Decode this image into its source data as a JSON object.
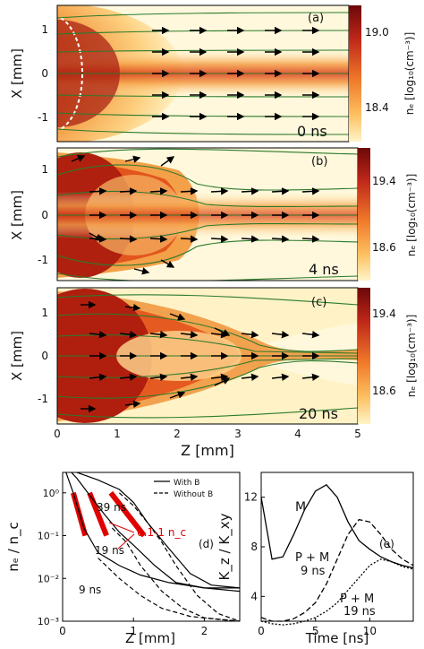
{
  "colors": {
    "plasma_dark": "#7a0a0a",
    "plasma_mid": "#e8561a",
    "plasma_light": "#ffe8a0",
    "field_line": "#2c7a2c",
    "arrow": "#000000",
    "bar_red": "#e00000"
  },
  "panels": [
    {
      "id": "a",
      "label": "(a)",
      "time": "0 ns",
      "ylabel": "X  [mm]",
      "yticks": [
        "1",
        "0",
        "-1"
      ],
      "colorbar_ticks": [
        "19.0",
        "18.4"
      ],
      "colorbar_label": "nₑ [log₁₀(cm⁻³)]"
    },
    {
      "id": "b",
      "label": "(b)",
      "time": "4 ns",
      "ylabel": "X  [mm]",
      "yticks": [
        "1",
        "0",
        "-1"
      ],
      "colorbar_ticks": [
        "19.4",
        "18.6"
      ],
      "colorbar_label": "nₑ [log₁₀(cm⁻³)]"
    },
    {
      "id": "c",
      "label": "(c)",
      "time": "20 ns",
      "ylabel": "X  [mm]",
      "yticks": [
        "1",
        "0",
        "-1"
      ],
      "colorbar_ticks": [
        "19.4",
        "18.6"
      ],
      "colorbar_label": "nₑ [log₁₀(cm⁻³)]"
    }
  ],
  "map_xaxis": {
    "label": "Z [mm]",
    "ticks": [
      "0",
      "1",
      "2",
      "3",
      "4",
      "5"
    ]
  },
  "chart_data": [
    {
      "type": "line",
      "panel": "(d)",
      "xlabel": "Z [mm]",
      "ylabel": "nₑ / n_c",
      "xlim": [
        0,
        2.5
      ],
      "ylim": [
        0.001,
        3
      ],
      "log_y": true,
      "xticks": [
        "0",
        "1",
        "2"
      ],
      "yticks": [
        "10⁰",
        "10⁻¹",
        "10⁻²",
        "10⁻³"
      ],
      "legend": [
        "With B",
        "Without B"
      ],
      "annotations": [
        "39 ns",
        "19 ns",
        "9 ns",
        "0.1-1 n_c"
      ],
      "series": [
        {
          "name": "With B",
          "label": "39 ns",
          "x": [
            0,
            0.2,
            0.5,
            0.8,
            1.0,
            1.2,
            1.5,
            1.8,
            2.1,
            2.5
          ],
          "y": [
            6,
            3,
            2.0,
            1.2,
            0.6,
            0.2,
            0.05,
            0.013,
            0.007,
            0.006
          ]
        },
        {
          "name": "With B",
          "label": "19 ns",
          "x": [
            0,
            0.2,
            0.4,
            0.6,
            0.8,
            1.0,
            1.3,
            1.6,
            2.0,
            2.5
          ],
          "y": [
            5,
            2.2,
            0.8,
            0.3,
            0.12,
            0.06,
            0.02,
            0.008,
            0.006,
            0.006
          ]
        },
        {
          "name": "With B",
          "label": "9 ns",
          "x": [
            0,
            0.15,
            0.3,
            0.5,
            0.8,
            1.1,
            1.5,
            2.0,
            2.5
          ],
          "y": [
            5,
            1.0,
            0.15,
            0.04,
            0.02,
            0.012,
            0.008,
            0.006,
            0.005
          ]
        },
        {
          "name": "Without B",
          "label": "39 ns",
          "x": [
            0.8,
            1.0,
            1.2,
            1.4,
            1.6,
            1.9,
            2.2,
            2.5
          ],
          "y": [
            1.0,
            0.5,
            0.2,
            0.07,
            0.02,
            0.004,
            0.0015,
            0.001
          ]
        },
        {
          "name": "Without B",
          "label": "19 ns",
          "x": [
            0.7,
            0.9,
            1.1,
            1.4,
            1.7,
            2.0,
            2.5
          ],
          "y": [
            0.15,
            0.07,
            0.02,
            0.005,
            0.002,
            0.0012,
            0.001
          ]
        },
        {
          "name": "Without B",
          "label": "9 ns",
          "x": [
            0.5,
            0.8,
            1.1,
            1.4,
            1.8,
            2.2,
            2.5
          ],
          "y": [
            0.03,
            0.01,
            0.004,
            0.002,
            0.0013,
            0.0011,
            0.001
          ]
        }
      ],
      "highlight_bars": [
        {
          "x": [
            0.15,
            0.32
          ],
          "y": [
            1.0,
            0.1
          ]
        },
        {
          "x": [
            0.38,
            0.62
          ],
          "y": [
            1.0,
            0.1
          ]
        },
        {
          "x": [
            0.68,
            1.15
          ],
          "y": [
            1.0,
            0.1
          ]
        }
      ]
    },
    {
      "type": "line",
      "panel": "(e)",
      "xlabel": "Time [ns]",
      "ylabel": "K_z / K_xy",
      "xlim": [
        0,
        14
      ],
      "ylim": [
        2,
        14
      ],
      "xticks": [
        "0",
        "5",
        "10"
      ],
      "yticks": [
        "12",
        "8",
        "4"
      ],
      "annotations": [
        "M",
        "P + M\n9 ns",
        "P + M\n19 ns"
      ],
      "series": [
        {
          "name": "M",
          "x": [
            0,
            1,
            2,
            3,
            4,
            5,
            6,
            7,
            8,
            9,
            10,
            11,
            12,
            13,
            14
          ],
          "y": [
            12,
            7,
            7.2,
            9,
            11,
            12.5,
            13,
            12,
            10,
            8.5,
            7.8,
            7.2,
            6.8,
            6.5,
            6.3
          ]
        },
        {
          "name": "P + M 9 ns",
          "x": [
            0,
            1,
            2,
            3,
            4,
            5,
            6,
            7,
            8,
            9,
            10,
            11,
            12,
            13,
            14
          ],
          "y": [
            2.3,
            2.0,
            2.0,
            2.2,
            2.7,
            3.5,
            5,
            7,
            9,
            10.2,
            10,
            9,
            7.8,
            7,
            6.5
          ]
        },
        {
          "name": "P + M 19 ns",
          "x": [
            0,
            1,
            2,
            3,
            4,
            5,
            6,
            7,
            8,
            9,
            10,
            11,
            12,
            13,
            14
          ],
          "y": [
            2.0,
            1.8,
            1.7,
            1.8,
            2.0,
            2.3,
            2.8,
            3.5,
            4.5,
            5.5,
            6.5,
            7,
            6.8,
            6.4,
            6.2
          ]
        }
      ]
    }
  ]
}
